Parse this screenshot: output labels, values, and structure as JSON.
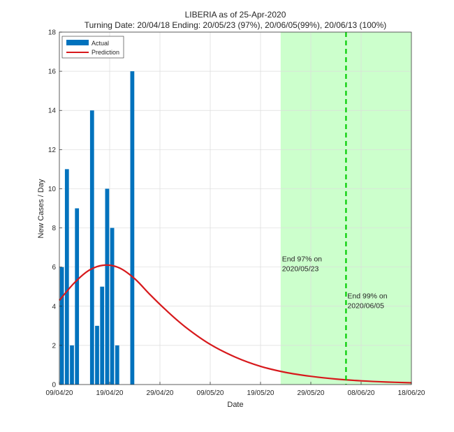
{
  "chart_data": {
    "type": "bar",
    "title": "LIBERIA as of 25-Apr-2020",
    "subtitle": "Turning Date: 20/04/18  Ending: 20/05/23 (97%), 20/06/05(99%), 20/06/13 (100%)",
    "xlabel": "Date",
    "ylabel": "New Cases / Day",
    "xlim": [
      "2020-04-09",
      "2020-06-18"
    ],
    "ylim": [
      0,
      18
    ],
    "yticks": [
      0,
      2,
      4,
      6,
      8,
      10,
      12,
      14,
      16,
      18
    ],
    "xticks": [
      "2020-04-09",
      "2020-04-19",
      "2020-04-29",
      "2020-05-09",
      "2020-05-19",
      "2020-05-29",
      "2020-06-08",
      "2020-06-18"
    ],
    "xtick_labels": [
      "09/04/20",
      "19/04/20",
      "29/04/20",
      "09/05/20",
      "19/05/20",
      "29/05/20",
      "08/06/20",
      "18/06/20"
    ],
    "grid": true,
    "legend_position": "top-left",
    "series": [
      {
        "name": "Actual",
        "type": "bar",
        "color": "#0072BD",
        "x": [
          "2020-04-09",
          "2020-04-10",
          "2020-04-11",
          "2020-04-12",
          "2020-04-15",
          "2020-04-16",
          "2020-04-17",
          "2020-04-18",
          "2020-04-19",
          "2020-04-20",
          "2020-04-23"
        ],
        "values": [
          6,
          11,
          2,
          9,
          14,
          3,
          5,
          10,
          8,
          2,
          16
        ]
      },
      {
        "name": "Prediction",
        "type": "line",
        "color": "#D7191C",
        "x": [
          "2020-04-09",
          "2020-04-12",
          "2020-04-15",
          "2020-04-18",
          "2020-04-21",
          "2020-04-24",
          "2020-04-27",
          "2020-04-30",
          "2020-05-04",
          "2020-05-09",
          "2020-05-14",
          "2020-05-19",
          "2020-05-24",
          "2020-05-29",
          "2020-06-03",
          "2020-06-08",
          "2020-06-13",
          "2020-06-18"
        ],
        "values": [
          4.3,
          5.2,
          5.85,
          6.1,
          5.95,
          5.4,
          4.6,
          3.85,
          2.95,
          2.05,
          1.4,
          0.93,
          0.62,
          0.42,
          0.28,
          0.19,
          0.13,
          0.09
        ]
      }
    ],
    "shaded_region": {
      "from": "2020-05-23",
      "to": "2020-06-18",
      "color": "#CCFFCC"
    },
    "vertical_line": {
      "x": "2020-06-05",
      "color": "#00CC00",
      "style": "dashed"
    },
    "annotations": [
      {
        "x": "2020-05-23",
        "y": 6.3,
        "lines": [
          "End 97% on",
          "2020/05/23"
        ]
      },
      {
        "x": "2020-06-05",
        "y": 4.4,
        "lines": [
          "End 99% on",
          "2020/06/05"
        ]
      }
    ]
  }
}
